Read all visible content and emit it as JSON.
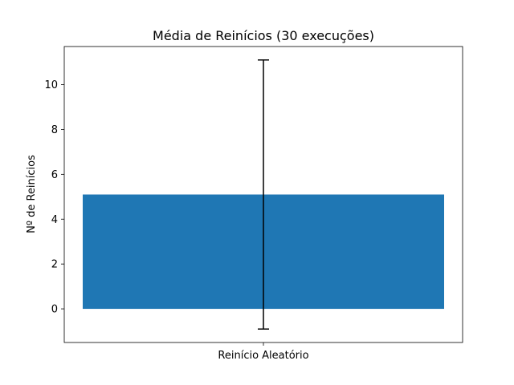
{
  "chart_data": {
    "type": "bar",
    "title": "Média de Reinícios (30 execuções)",
    "xlabel": "",
    "ylabel": "Nº de Reinícios",
    "categories": [
      "Reinício Aleatório"
    ],
    "values": [
      5.1
    ],
    "error": [
      6.0
    ],
    "ylim": [
      -1.5,
      11.7
    ],
    "yticks": [
      0,
      2,
      4,
      6,
      8,
      10
    ],
    "grid": false,
    "legend": "none",
    "bar_color": "#1f77b4",
    "errorbar_color": "#000000"
  }
}
